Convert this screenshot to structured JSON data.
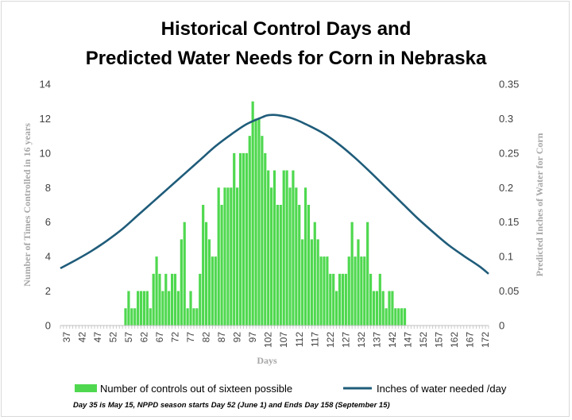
{
  "chart_data": {
    "type": "bar",
    "title_line1": "Historical Control Days and",
    "title_line2": "Predicted Water Needs for Corn in Nebraska",
    "xlabel": "Days",
    "ylabel_left": "Number of Times Controlled in 16 years",
    "ylabel_right": "Predicted Inches of Water for Corn",
    "x_range": [
      35,
      173
    ],
    "y_left_range": [
      0,
      14
    ],
    "y_left_ticks": [
      "0",
      "2",
      "4",
      "6",
      "8",
      "10",
      "12",
      "14"
    ],
    "y_right_range": [
      0,
      0.35
    ],
    "y_right_ticks": [
      "0",
      "0.05",
      "0.1",
      "0.15",
      "0.2",
      "0.25",
      "0.3",
      "0.35"
    ],
    "x_tick_labels": [
      "37",
      "42",
      "47",
      "52",
      "57",
      "62",
      "67",
      "72",
      "77",
      "82",
      "87",
      "92",
      "97",
      "102",
      "107",
      "112",
      "117",
      "122",
      "127",
      "132",
      "137",
      "142",
      "147",
      "152",
      "157",
      "162",
      "167",
      "172"
    ],
    "x_tick_values": [
      37,
      42,
      47,
      52,
      57,
      62,
      67,
      72,
      77,
      82,
      87,
      92,
      97,
      102,
      107,
      112,
      117,
      122,
      127,
      132,
      137,
      142,
      147,
      152,
      157,
      162,
      167,
      172
    ],
    "bar_series": {
      "name": "Number of controls out of sixteen possible",
      "color": "#4fd84f",
      "x": [
        56,
        57,
        58,
        59,
        60,
        61,
        62,
        63,
        64,
        65,
        66,
        67,
        68,
        69,
        70,
        71,
        72,
        73,
        74,
        75,
        76,
        77,
        78,
        79,
        80,
        81,
        82,
        83,
        84,
        85,
        86,
        87,
        88,
        89,
        90,
        91,
        92,
        93,
        94,
        95,
        96,
        97,
        98,
        99,
        100,
        101,
        102,
        103,
        104,
        105,
        106,
        107,
        108,
        109,
        110,
        111,
        112,
        113,
        114,
        115,
        116,
        117,
        118,
        119,
        120,
        121,
        122,
        123,
        124,
        125,
        126,
        127,
        128,
        129,
        130,
        131,
        132,
        133,
        134,
        135,
        136,
        137,
        138,
        139,
        140,
        141,
        142,
        143,
        144,
        145,
        146
      ],
      "values": [
        1,
        2,
        1,
        1,
        2,
        2,
        2,
        2,
        1,
        3,
        4,
        3,
        2,
        3,
        2,
        3,
        3,
        2,
        5,
        6,
        1,
        2,
        1,
        1,
        3,
        7,
        6,
        5,
        4,
        4,
        8,
        7,
        8,
        8,
        8,
        10,
        8,
        10,
        10,
        10,
        11,
        13,
        12,
        12,
        11,
        10,
        9,
        8,
        9,
        7,
        7,
        9,
        9,
        8,
        9,
        8,
        7,
        5,
        8,
        7,
        5,
        6,
        5,
        4,
        4,
        4,
        3,
        3,
        2,
        3,
        3,
        3,
        4,
        6,
        4,
        5,
        4,
        4,
        6,
        3,
        2,
        2,
        3,
        2,
        1,
        2,
        2,
        1,
        1,
        1,
        1
      ]
    },
    "line_series": {
      "name": "Inches of water needed /day",
      "color": "#1f5c7a",
      "x": [
        35,
        40,
        45,
        50,
        55,
        60,
        65,
        70,
        75,
        80,
        85,
        90,
        95,
        100,
        102,
        105,
        110,
        115,
        120,
        125,
        130,
        135,
        140,
        145,
        150,
        155,
        160,
        165,
        170,
        173
      ],
      "values": [
        0.083,
        0.095,
        0.108,
        0.123,
        0.14,
        0.16,
        0.18,
        0.2,
        0.22,
        0.24,
        0.26,
        0.277,
        0.292,
        0.302,
        0.305,
        0.305,
        0.3,
        0.29,
        0.278,
        0.262,
        0.243,
        0.222,
        0.2,
        0.178,
        0.156,
        0.136,
        0.117,
        0.101,
        0.086,
        0.075
      ]
    },
    "legend_position": "bottom",
    "grid": false
  },
  "footnote": "Day 35 is May 15, NPPD season starts Day 52 (June 1) and Ends Day 158 (September 15)"
}
